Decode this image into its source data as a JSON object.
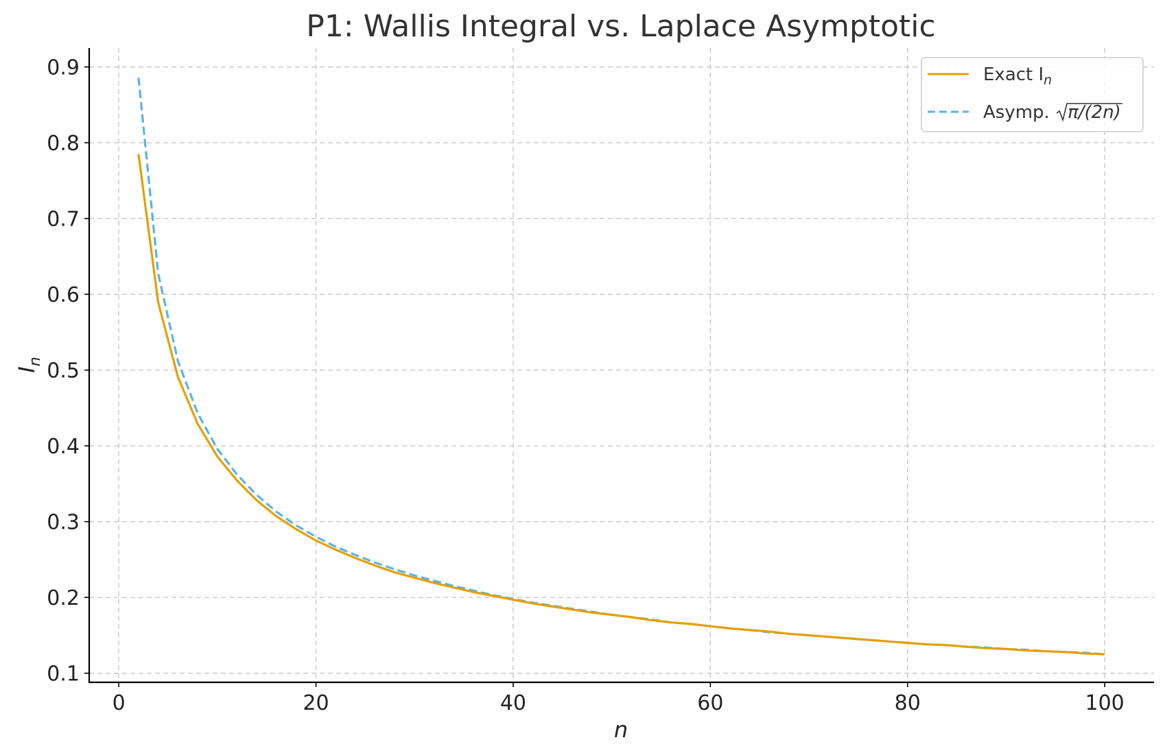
{
  "chart_data": {
    "type": "line",
    "title": "P1: Wallis Integral vs. Laplace Asymptotic",
    "xlabel": "n",
    "ylabel": {
      "base": "I",
      "sub": "n"
    },
    "xlim": [
      -3,
      105
    ],
    "ylim": [
      0.088,
      0.925
    ],
    "x_ticks": [
      0,
      20,
      40,
      60,
      80,
      100
    ],
    "y_ticks": [
      0.1,
      0.2,
      0.3,
      0.4,
      0.5,
      0.6,
      0.7,
      0.8,
      0.9
    ],
    "x_tick_labels": [
      "0",
      "20",
      "40",
      "60",
      "80",
      "100"
    ],
    "y_tick_labels": [
      "0.1",
      "0.2",
      "0.3",
      "0.4",
      "0.5",
      "0.6",
      "0.7",
      "0.8",
      "0.9"
    ],
    "grid": true,
    "legend_position": "top-right",
    "colors": {
      "exact": "#E69F00",
      "asymp": "#56B4E9",
      "axis": "#000000"
    },
    "x": [
      2,
      4,
      6,
      8,
      10,
      12,
      14,
      16,
      18,
      20,
      22,
      24,
      26,
      28,
      30,
      32,
      34,
      36,
      38,
      40,
      42,
      44,
      46,
      48,
      50,
      52,
      54,
      56,
      58,
      60,
      62,
      64,
      66,
      68,
      70,
      72,
      74,
      76,
      78,
      80,
      82,
      84,
      86,
      88,
      90,
      92,
      94,
      96,
      98,
      100
    ],
    "series": [
      {
        "name": "Exact I_n",
        "legend": {
          "base": "Exact I",
          "sub": "n"
        },
        "style": "solid",
        "values": [
          0.785,
          0.589,
          0.491,
          0.429,
          0.386,
          0.354,
          0.328,
          0.307,
          0.29,
          0.275,
          0.263,
          0.252,
          0.242,
          0.233,
          0.226,
          0.219,
          0.213,
          0.207,
          0.202,
          0.197,
          0.192,
          0.188,
          0.184,
          0.18,
          0.177,
          0.174,
          0.17,
          0.167,
          0.165,
          0.162,
          0.159,
          0.157,
          0.155,
          0.152,
          0.15,
          0.148,
          0.146,
          0.144,
          0.142,
          0.14,
          0.138,
          0.137,
          0.135,
          0.133,
          0.132,
          0.13,
          0.129,
          0.128,
          0.126,
          0.125
        ]
      },
      {
        "name": "Asymp. √π/(2n)",
        "legend": {
          "prefix": "Asymp. ",
          "radicand": "π/(2n)"
        },
        "style": "dashed",
        "values": [
          0.886,
          0.627,
          0.512,
          0.443,
          0.396,
          0.362,
          0.335,
          0.313,
          0.295,
          0.28,
          0.267,
          0.256,
          0.246,
          0.237,
          0.229,
          0.222,
          0.215,
          0.209,
          0.203,
          0.198,
          0.193,
          0.189,
          0.185,
          0.181,
          0.177,
          0.174,
          0.171,
          0.167,
          0.165,
          0.162,
          0.159,
          0.157,
          0.154,
          0.152,
          0.15,
          0.148,
          0.146,
          0.144,
          0.142,
          0.14,
          0.138,
          0.137,
          0.135,
          0.134,
          0.132,
          0.131,
          0.129,
          0.128,
          0.127,
          0.125
        ]
      }
    ]
  }
}
